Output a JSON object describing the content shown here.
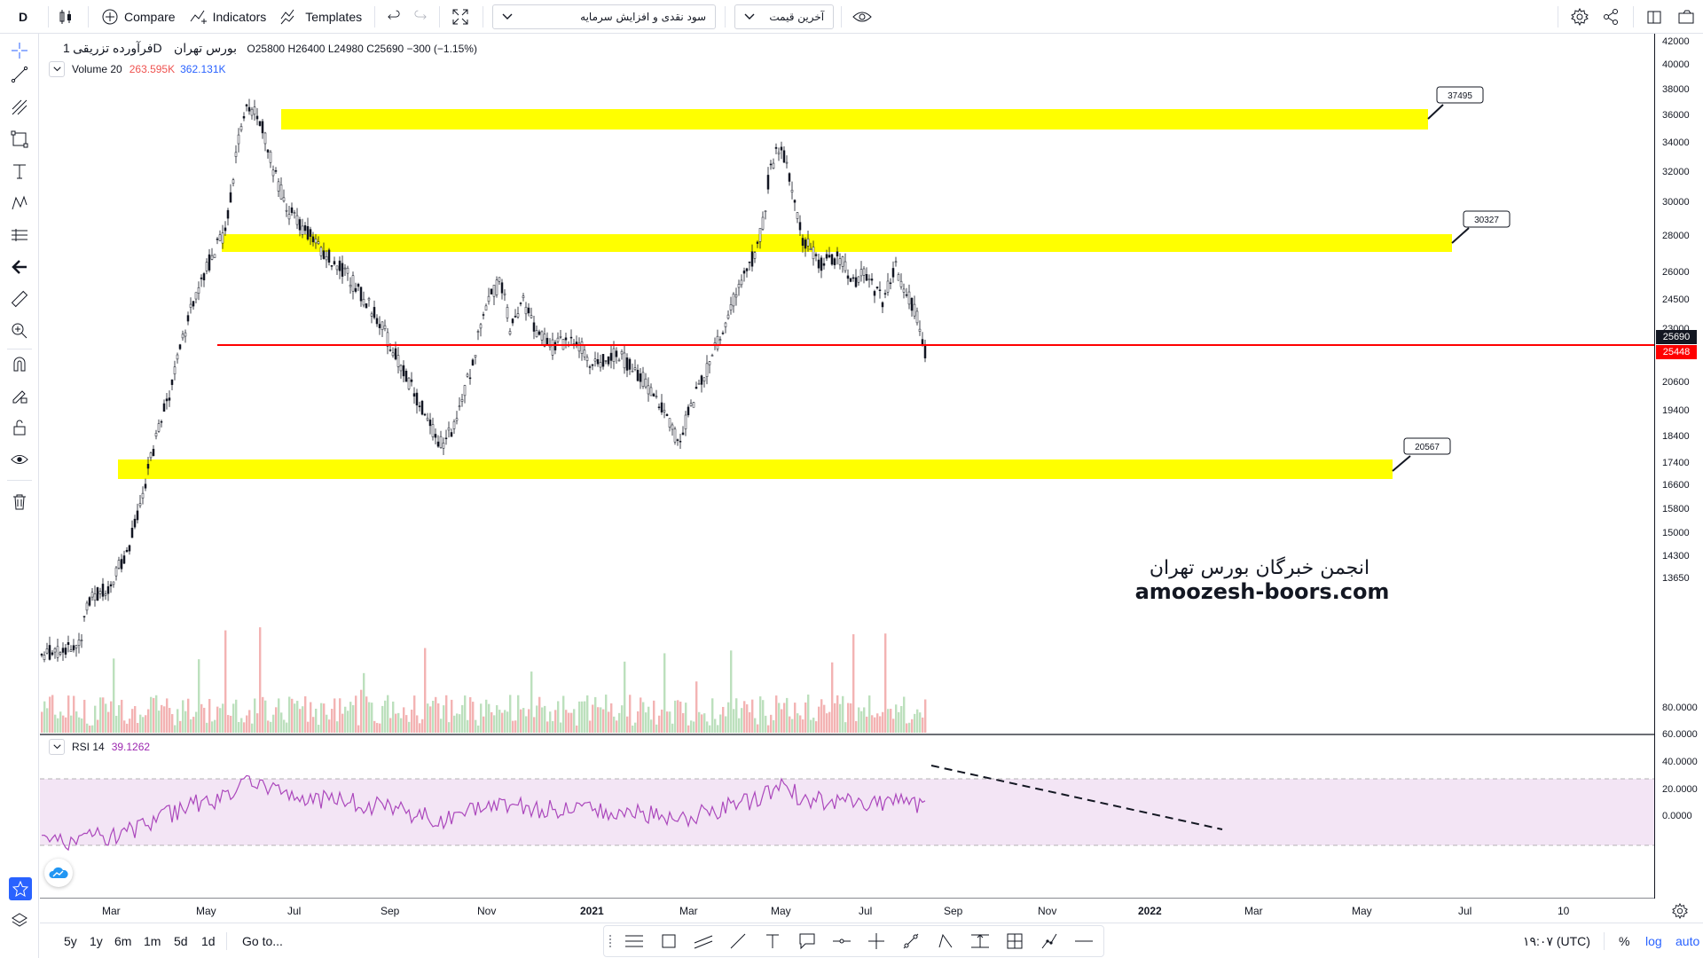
{
  "toolbar": {
    "interval_label": "D",
    "compare_label": "Compare",
    "indicators_label": "Indicators",
    "templates_label": "Templates",
    "dropdown_1": "سود نقدی و افزایش سرمایه",
    "dropdown_2": "آخرین قیمت"
  },
  "legend": {
    "symbol": "فرآورده تزریقی",
    "interval": "1D",
    "exchange": "بورس تهران",
    "ohlc": "O25800 H26400 L24980 C25690 −300 (−1.15%)",
    "volume_name": "Volume 20",
    "volume_val_1": "263.595K",
    "volume_val_2": "362.131K",
    "rsi_name": "RSI 14",
    "rsi_value": "39.1262"
  },
  "watermark": {
    "line1": "انجمن خبرگان بورس تهران",
    "line2": "amoozesh-boors.com"
  },
  "price_axis": [
    "42000",
    "40000",
    "38000",
    "36000",
    "34000",
    "32000",
    "30000",
    "28000",
    "26000",
    "24500",
    "23000",
    "21800",
    "20600",
    "19400",
    "18400",
    "17400",
    "16600",
    "15800",
    "15000",
    "14300",
    "13650"
  ],
  "price_tags": {
    "last": "25690",
    "line": "25448"
  },
  "rsi_axis": [
    "80.0000",
    "60.0000",
    "40.0000",
    "20.0000",
    "0.0000"
  ],
  "time_axis": [
    "Mar",
    "May",
    "Jul",
    "Sep",
    "Nov",
    "2021",
    "Mar",
    "May",
    "Jul",
    "Sep",
    "Nov",
    "2022",
    "Mar",
    "May",
    "Jul",
    "10"
  ],
  "callouts": [
    "37495",
    "30327",
    "20567"
  ],
  "bottom": {
    "ranges": [
      "5y",
      "1y",
      "6m",
      "1m",
      "5d",
      "1d"
    ],
    "goto": "Go to...",
    "time": "۱۹:۰۷ (UTC)",
    "pct": "%",
    "log": "log",
    "auto": "auto"
  },
  "colors": {
    "zone": "#ffff00",
    "support_line": "#ff0000",
    "rsi": "#9c27b0",
    "rsi_band": "#f3e5f5",
    "accent": "#2962ff"
  }
}
